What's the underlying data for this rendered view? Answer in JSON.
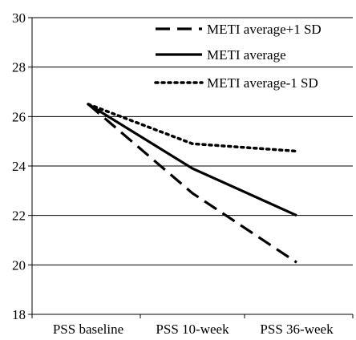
{
  "chart_data": {
    "type": "line",
    "title": "",
    "xlabel": "",
    "ylabel": "",
    "categories": [
      "PSS baseline",
      "PSS 10-week",
      "PSS 36-week"
    ],
    "ylim": [
      18,
      30
    ],
    "yticks": [
      18,
      20,
      22,
      24,
      26,
      28,
      30
    ],
    "grid": "horizontal",
    "legend_position": "top-right",
    "series": [
      {
        "name": "METI average+1 SD",
        "values": [
          26.5,
          22.9,
          20.1
        ],
        "style": "dashed",
        "color": "#000000"
      },
      {
        "name": "METI average",
        "values": [
          26.5,
          23.9,
          22.0
        ],
        "style": "solid",
        "color": "#000000"
      },
      {
        "name": "METI average-1 SD",
        "values": [
          26.5,
          24.9,
          24.6
        ],
        "style": "dotted",
        "color": "#000000"
      }
    ]
  }
}
